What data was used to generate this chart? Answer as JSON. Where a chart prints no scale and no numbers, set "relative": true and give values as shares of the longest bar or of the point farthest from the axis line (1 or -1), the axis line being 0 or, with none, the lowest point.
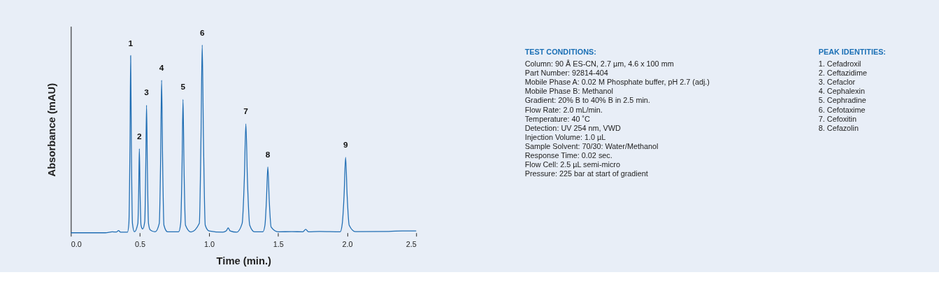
{
  "chart_data": [
    {
      "type": "line",
      "relative": true,
      "xlabel": "Time (min.)",
      "ylabel": "Absorbance (mAU)",
      "xlim": [
        0,
        2.5
      ],
      "xticks": [
        {
          "value": 0,
          "label": "0.0"
        },
        {
          "value": 0.5,
          "label": "0.5"
        },
        {
          "value": 1,
          "label": "1.0"
        },
        {
          "value": 1.5,
          "label": "1.5"
        },
        {
          "value": 2,
          "label": "2.0"
        },
        {
          "value": 2.5,
          "label": "2.5"
        }
      ],
      "grid": false,
      "series": [
        {
          "color": "#1f6db3",
          "x": [
            0.0,
            0.25,
            0.3,
            0.33,
            0.345,
            0.36,
            0.41,
            0.42,
            0.428,
            0.433,
            0.438,
            0.446,
            0.46,
            0.485,
            0.491,
            0.496,
            0.501,
            0.508,
            0.52,
            0.535,
            0.542,
            0.548,
            0.554,
            0.562,
            0.575,
            0.61,
            0.64,
            0.65,
            0.657,
            0.664,
            0.674,
            0.7,
            0.78,
            0.795,
            0.805,
            0.812,
            0.819,
            0.83,
            0.87,
            0.93,
            0.942,
            0.951,
            0.96,
            0.973,
            1.0,
            1.1,
            1.125,
            1.139,
            1.153,
            1.2,
            1.24,
            1.256,
            1.267,
            1.278,
            1.295,
            1.33,
            1.39,
            1.405,
            1.416,
            1.426,
            1.436,
            1.45,
            1.5,
            1.6,
            1.68,
            1.7,
            1.72,
            1.8,
            1.95,
            1.965,
            1.978,
            1.989,
            2.0,
            2.015,
            2.06,
            2.3,
            2.4,
            2.5
          ],
          "values": [
            0.0,
            0.0,
            0.005,
            0.004,
            0.012,
            0.003,
            0.003,
            0.05,
            0.47,
            0.944,
            0.47,
            0.05,
            0.005,
            0.05,
            0.22,
            0.448,
            0.22,
            0.04,
            0.02,
            0.06,
            0.34,
            0.68,
            0.34,
            0.05,
            0.015,
            0.005,
            0.05,
            0.4,
            0.813,
            0.4,
            0.04,
            0.005,
            0.005,
            0.05,
            0.355,
            0.71,
            0.355,
            0.04,
            0.004,
            0.05,
            0.5,
            1.0,
            0.5,
            0.04,
            0.01,
            0.003,
            0.01,
            0.026,
            0.01,
            0.003,
            0.05,
            0.29,
            0.58,
            0.29,
            0.04,
            0.005,
            0.005,
            0.04,
            0.175,
            0.351,
            0.175,
            0.03,
            0.005,
            0.006,
            0.005,
            0.018,
            0.005,
            0.007,
            0.005,
            0.05,
            0.2,
            0.402,
            0.2,
            0.04,
            0.006,
            0.007,
            0.01,
            0.01
          ]
        }
      ],
      "annotations": [
        {
          "text": "1",
          "x": 0.433,
          "y": 0.944
        },
        {
          "text": "2",
          "x": 0.496,
          "y": 0.448
        },
        {
          "text": "3",
          "x": 0.548,
          "y": 0.68
        },
        {
          "text": "4",
          "x": 0.657,
          "y": 0.813
        },
        {
          "text": "5",
          "x": 0.812,
          "y": 0.71
        },
        {
          "text": "6",
          "x": 0.951,
          "y": 1.0
        },
        {
          "text": "7",
          "x": 1.267,
          "y": 0.58
        },
        {
          "text": "8",
          "x": 1.426,
          "y": 0.351
        },
        {
          "text": "9",
          "x": 1.989,
          "y": 0.402
        }
      ]
    },
    {
      "type": "other",
      "title": "TEST CONDITIONS:",
      "annotations": [
        "Column: 90 Å ES-CN, 2.7 µm, 4.6 x 100 mm",
        "Part Number: 92814-404",
        "Mobile Phase A: 0.02 M Phosphate buffer, pH 2.7 (adj.)",
        "Mobile Phase B: Methanol",
        "Gradient: 20% B to 40% B in 2.5 min.",
        "Flow Rate: 2.0 mL/min.",
        "Temperature: 40 ˚C",
        "Detection: UV 254 nm, VWD",
        "Injection Volume: 1.0 µL",
        "Sample Solvent: 70/30: Water/Methanol",
        "Response Time: 0.02 sec.",
        "Flow Cell: 2.5 µL semi-micro",
        "Pressure: 225 bar at start of gradient"
      ]
    },
    {
      "type": "other",
      "title": "PEAK IDENTITIES:",
      "annotations": [
        "1. Cefadroxil",
        "2. Ceftazidime",
        "3. Cefaclor",
        "4. Cephalexin",
        "5. Cephradine",
        "6. Cefotaxime",
        "7. Cefoxitin",
        "8. Cefazolin"
      ]
    }
  ]
}
